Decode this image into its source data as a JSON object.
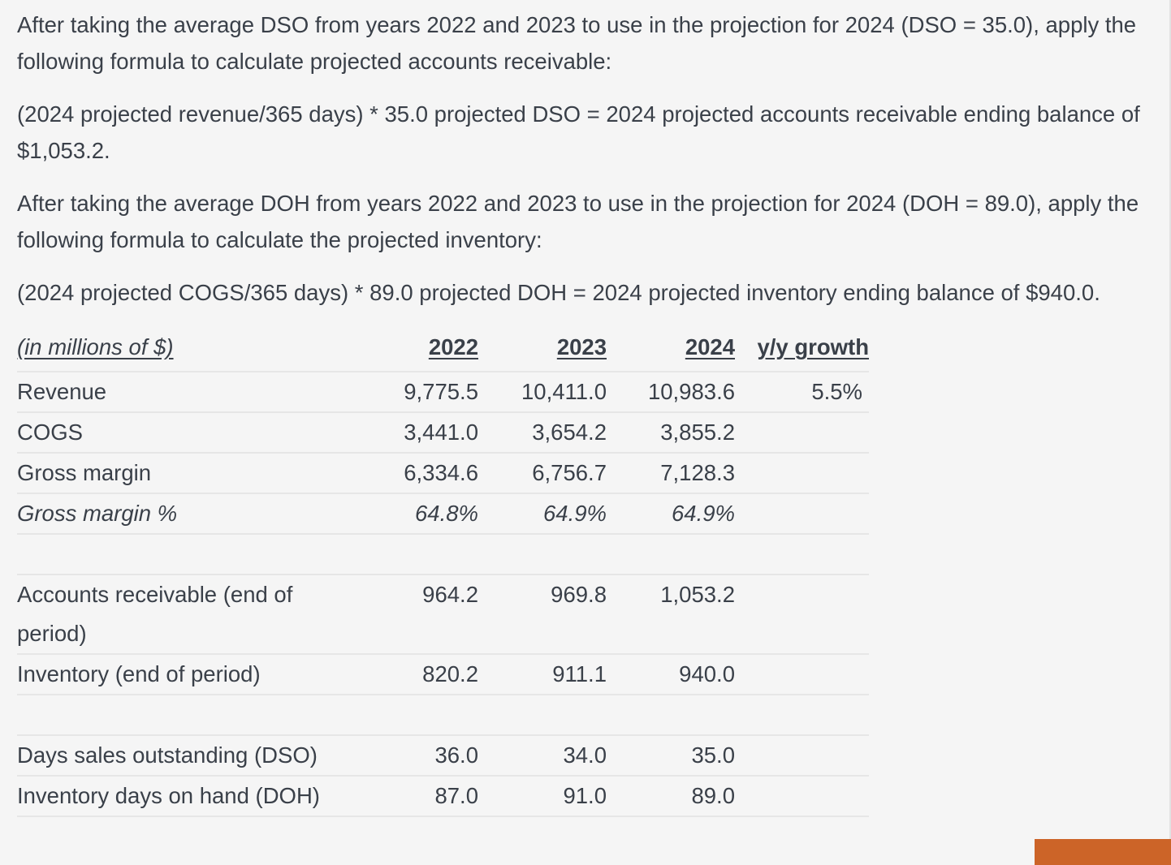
{
  "paragraphs": [
    "After taking the average DSO from years 2022 and 2023 to use in the projection for 2024 (DSO = 35.0), apply the following formula to calculate projected accounts receivable:",
    "(2024 projected revenue/365 days) * 35.0 projected DSO = 2024 projected accounts receivable ending balance of $1,053.2.",
    "After taking the average DOH from years 2022 and 2023 to use in the projection for 2024 (DOH = 89.0), apply the following formula to calculate the projected inventory:",
    "(2024 projected COGS/365 days) * 89.0 projected DOH = 2024 projected inventory ending balance of $940.0."
  ],
  "table": {
    "header": {
      "label": "(in millions of $)",
      "y2022": "2022",
      "y2023": "2023",
      "y2024": "2024",
      "growth": "y/y growth"
    },
    "rows": {
      "revenue": {
        "label": "Revenue",
        "y2022": "9,775.5",
        "y2023": "10,411.0",
        "y2024": "10,983.6",
        "growth": "5.5%"
      },
      "cogs": {
        "label": "COGS",
        "y2022": "3,441.0",
        "y2023": "3,654.2",
        "y2024": "3,855.2",
        "growth": ""
      },
      "gross_margin": {
        "label": "Gross margin",
        "y2022": "6,334.6",
        "y2023": "6,756.7",
        "y2024": "7,128.3",
        "growth": ""
      },
      "gross_margin_pct": {
        "label": "Gross margin %",
        "y2022": "64.8%",
        "y2023": "64.9%",
        "y2024": "64.9%",
        "growth": ""
      },
      "accounts_receivable": {
        "label": "Accounts receivable (end of period)",
        "y2022": "964.2",
        "y2023": "969.8",
        "y2024": "1,053.2",
        "growth": ""
      },
      "inventory": {
        "label": "Inventory (end of period)",
        "y2022": "820.2",
        "y2023": "911.1",
        "y2024": "940.0",
        "growth": ""
      },
      "dso": {
        "label": "Days sales outstanding (DSO)",
        "y2022": "36.0",
        "y2023": "34.0",
        "y2024": "35.0",
        "growth": ""
      },
      "doh": {
        "label": "Inventory days on hand (DOH)",
        "y2022": "87.0",
        "y2023": "91.0",
        "y2024": "89.0",
        "growth": ""
      }
    }
  },
  "colors": {
    "text": "#3a4049",
    "background": "#f5f5f5",
    "rule": "#e6e6e6",
    "accent": "#cc6428"
  }
}
